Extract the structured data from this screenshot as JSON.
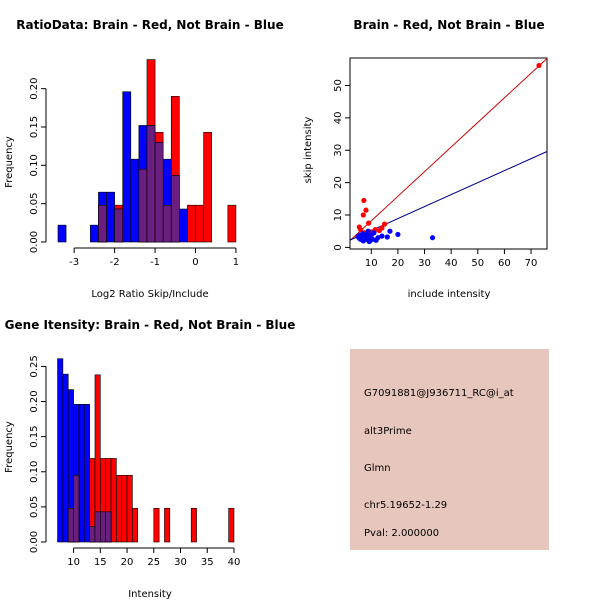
{
  "colors": {
    "brain": "#ff0000",
    "not_brain": "#0000ff",
    "overlap": "#6a1e80",
    "info_bg": "#e6c6bd",
    "pval": "#c00000",
    "brain_line": "#cc0000",
    "not_brain_line": "#00008b"
  },
  "chart_data": [
    {
      "type": "bar",
      "title": "RatioData: Brain - Red, Not Brain - Blue",
      "xlabel": "Log2 Ratio Skip/Include",
      "ylabel": "Frequency",
      "xlim": [
        -3.4,
        1.15
      ],
      "ylim": [
        0,
        0.24
      ],
      "xticks": [
        -3,
        -2,
        -1,
        0,
        1
      ],
      "yticks": [
        "0.00",
        "0.05",
        "0.10",
        "0.15",
        "0.20"
      ],
      "bin_width": 0.2,
      "series": [
        {
          "name": "Not Brain",
          "color_key": "not_brain",
          "bins": [
            {
              "x0": -3.4,
              "value": 0.022
            },
            {
              "x0": -2.6,
              "value": 0.022
            },
            {
              "x0": -2.4,
              "value": 0.065
            },
            {
              "x0": -2.2,
              "value": 0.065
            },
            {
              "x0": -2.0,
              "value": 0.043
            },
            {
              "x0": -1.8,
              "value": 0.196
            },
            {
              "x0": -1.6,
              "value": 0.108
            },
            {
              "x0": -1.4,
              "value": 0.152
            },
            {
              "x0": -1.2,
              "value": 0.152
            },
            {
              "x0": -1.0,
              "value": 0.13
            },
            {
              "x0": -0.8,
              "value": 0.108
            },
            {
              "x0": -0.6,
              "value": 0.087
            },
            {
              "x0": -0.4,
              "value": 0.043
            }
          ]
        },
        {
          "name": "Brain",
          "color_key": "brain",
          "bins": [
            {
              "x0": -2.4,
              "value": 0.048
            },
            {
              "x0": -2.0,
              "value": 0.048
            },
            {
              "x0": -1.4,
              "value": 0.095
            },
            {
              "x0": -1.2,
              "value": 0.238
            },
            {
              "x0": -1.0,
              "value": 0.143
            },
            {
              "x0": -0.8,
              "value": 0.048
            },
            {
              "x0": -0.6,
              "value": 0.19
            },
            {
              "x0": -0.2,
              "value": 0.048
            },
            {
              "x0": 0.0,
              "value": 0.048
            },
            {
              "x0": 0.2,
              "value": 0.143
            },
            {
              "x0": 0.8,
              "value": 0.048
            }
          ]
        }
      ]
    },
    {
      "type": "scatter",
      "title": "Brain - Red, Not Brain - Blue",
      "xlabel": "include intensity",
      "ylabel": "skip intensity",
      "xlim": [
        2,
        76
      ],
      "ylim": [
        -0.5,
        58.5
      ],
      "xticks": [
        10,
        20,
        30,
        40,
        50,
        60,
        70
      ],
      "yticks": [
        0,
        10,
        20,
        30,
        40,
        50
      ],
      "series": [
        {
          "name": "Brain",
          "color_key": "brain",
          "points": [
            [
              73,
              56.2
            ],
            [
              7.2,
              14.5
            ],
            [
              8,
              11.5
            ],
            [
              7,
              10
            ],
            [
              5.5,
              6.3
            ],
            [
              9,
              7.5
            ],
            [
              15,
              7.2
            ],
            [
              14,
              6
            ],
            [
              6,
              5.5
            ],
            [
              7.5,
              4.5
            ],
            [
              10,
              4.8
            ],
            [
              11.5,
              5.5
            ],
            [
              8.5,
              3.5
            ],
            [
              13,
              5.2
            ]
          ]
        },
        {
          "name": "Not Brain",
          "color_key": "not_brain",
          "points": [
            [
              33,
              3
            ],
            [
              20,
              4
            ],
            [
              17,
              5
            ],
            [
              16,
              3.2
            ],
            [
              14,
              3.5
            ],
            [
              12.5,
              3
            ],
            [
              11,
              4.5
            ],
            [
              10.5,
              2.5
            ],
            [
              10,
              3.8
            ],
            [
              9.5,
              2
            ],
            [
              9,
              3
            ],
            [
              8.5,
              4
            ],
            [
              8,
              2.5
            ],
            [
              7.5,
              3.5
            ],
            [
              7,
              2
            ],
            [
              6.8,
              4.2
            ],
            [
              6.5,
              3
            ],
            [
              6,
              2.5
            ],
            [
              5.8,
              3.8
            ],
            [
              5.5,
              2.8
            ],
            [
              5,
              3.3
            ],
            [
              9.2,
              1.8
            ],
            [
              11.8,
              2.2
            ],
            [
              8.8,
              5
            ]
          ]
        }
      ],
      "fit_lines": [
        {
          "name": "Brain fit",
          "color_key": "brain_line",
          "slope": 0.76,
          "intercept": 0.6
        },
        {
          "name": "Not Brain fit",
          "color_key": "not_brain_line",
          "slope": 0.37,
          "intercept": 1.5
        }
      ]
    },
    {
      "type": "bar",
      "title": "Gene Itensity: Brain - Red, Not Brain - Blue",
      "xlabel": "Intensity",
      "ylabel": "Frequency",
      "xlim": [
        6.9,
        41.5
      ],
      "ylim": [
        0,
        0.262
      ],
      "xticks": [
        10,
        15,
        20,
        25,
        30,
        35,
        40
      ],
      "yticks": [
        "0.00",
        "0.05",
        "0.10",
        "0.15",
        "0.20",
        "0.25"
      ],
      "bin_width": 1,
      "series": [
        {
          "name": "Not Brain",
          "color_key": "not_brain",
          "bins": [
            {
              "x0": 7,
              "value": 0.261
            },
            {
              "x0": 8,
              "value": 0.239
            },
            {
              "x0": 9,
              "value": 0.217
            },
            {
              "x0": 10,
              "value": 0.196
            },
            {
              "x0": 11,
              "value": 0.196
            },
            {
              "x0": 12,
              "value": 0.196
            },
            {
              "x0": 13,
              "value": 0.022
            },
            {
              "x0": 14,
              "value": 0.043
            },
            {
              "x0": 15,
              "value": 0.043
            },
            {
              "x0": 16,
              "value": 0.043
            }
          ]
        },
        {
          "name": "Brain",
          "color_key": "brain",
          "bins": [
            {
              "x0": 9,
              "value": 0.048
            },
            {
              "x0": 10,
              "value": 0.095
            },
            {
              "x0": 13,
              "value": 0.119
            },
            {
              "x0": 14,
              "value": 0.238
            },
            {
              "x0": 15,
              "value": 0.119
            },
            {
              "x0": 16,
              "value": 0.119
            },
            {
              "x0": 17,
              "value": 0.119
            },
            {
              "x0": 18,
              "value": 0.095
            },
            {
              "x0": 19,
              "value": 0.095
            },
            {
              "x0": 20,
              "value": 0.095
            },
            {
              "x0": 21,
              "value": 0.048
            },
            {
              "x0": 25,
              "value": 0.048
            },
            {
              "x0": 27,
              "value": 0.048
            },
            {
              "x0": 32,
              "value": 0.048
            },
            {
              "x0": 39,
              "value": 0.048
            }
          ]
        }
      ]
    }
  ],
  "info_panel": {
    "probe_id": "G7091881@J936711_RC@i_at",
    "event_type": "alt3Prime",
    "gene": "Glmn",
    "location": "chr5.19652-1.29",
    "pval": "Pval: 2.000000"
  }
}
